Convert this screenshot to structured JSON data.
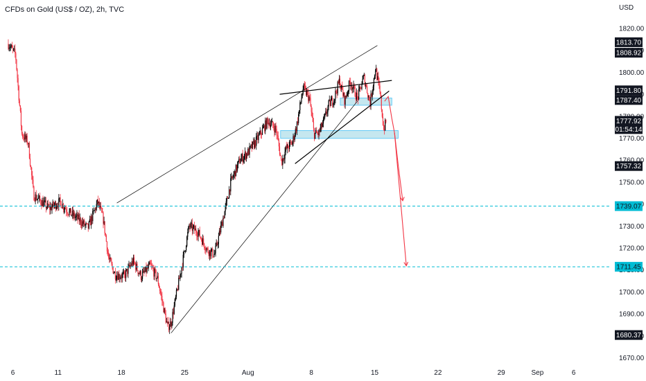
{
  "header": {
    "symbol_line": "CFDs on Gold (US$ / OZ), 2h, TVC"
  },
  "price_axis": {
    "currency": "USD"
  },
  "chart_data": {
    "type": "candlestick",
    "symbol": "CFDs on Gold (US$ / OZ)",
    "interval": "2h",
    "source": "TVC",
    "ylim": [
      1665,
      1830
    ],
    "y_ticks": [
      1670,
      1680,
      1690,
      1700,
      1710,
      1720,
      1730,
      1740,
      1750,
      1760,
      1770,
      1780,
      1790,
      1800,
      1810,
      1820
    ],
    "y_tick_labels": [
      "1670.00",
      "1680.00",
      "1690.00",
      "1700.00",
      "1710.00",
      "1720.00",
      "1730.00",
      "1740.00",
      "1750.00",
      "1760.00",
      "1770.00",
      "1780.00",
      "1790.00",
      "1800.00",
      "1810.00",
      "1820.00"
    ],
    "x_ticks": [
      {
        "label": "6",
        "day": 0
      },
      {
        "label": "11",
        "day": 5
      },
      {
        "label": "18",
        "day": 12
      },
      {
        "label": "25",
        "day": 19
      },
      {
        "label": "Aug",
        "day": 26
      },
      {
        "label": "8",
        "day": 33
      },
      {
        "label": "15",
        "day": 40
      },
      {
        "label": "22",
        "day": 47
      },
      {
        "label": "29",
        "day": 54
      },
      {
        "label": "Sep",
        "day": 58
      },
      {
        "label": "6",
        "day": 62
      }
    ],
    "price_path": [
      [
        -0.5,
        1813
      ],
      [
        0.3,
        1808
      ],
      [
        1,
        1772
      ],
      [
        1.7,
        1768
      ],
      [
        2.3,
        1744
      ],
      [
        3.2,
        1741
      ],
      [
        4,
        1738
      ],
      [
        5.2,
        1741
      ],
      [
        6.3,
        1736
      ],
      [
        7.3,
        1733
      ],
      [
        8.3,
        1729
      ],
      [
        9.4,
        1741
      ],
      [
        10,
        1733
      ],
      [
        10.6,
        1715
      ],
      [
        11.3,
        1708
      ],
      [
        12.3,
        1707
      ],
      [
        13.3,
        1714
      ],
      [
        14.2,
        1707
      ],
      [
        15.2,
        1712
      ],
      [
        16,
        1706
      ],
      [
        17.1,
        1684
      ],
      [
        17.5,
        1686
      ],
      [
        18.6,
        1710
      ],
      [
        19.5,
        1730
      ],
      [
        20.5,
        1727
      ],
      [
        21.5,
        1719
      ],
      [
        22.3,
        1717
      ],
      [
        23.5,
        1738
      ],
      [
        24.1,
        1750
      ],
      [
        25.1,
        1760
      ],
      [
        26.1,
        1764
      ],
      [
        27.1,
        1770
      ],
      [
        28.2,
        1778
      ],
      [
        29.1,
        1774
      ],
      [
        29.7,
        1759
      ],
      [
        30.2,
        1765
      ],
      [
        30.9,
        1768
      ],
      [
        31.4,
        1776
      ],
      [
        32.1,
        1793
      ],
      [
        32.8,
        1788
      ],
      [
        33.3,
        1772
      ],
      [
        33.8,
        1772
      ],
      [
        34.4,
        1778
      ],
      [
        34.9,
        1785
      ],
      [
        35.5,
        1788
      ],
      [
        36.1,
        1796
      ],
      [
        36.7,
        1787
      ],
      [
        37.3,
        1796
      ],
      [
        38.1,
        1788
      ],
      [
        38.8,
        1798
      ],
      [
        39.5,
        1786
      ],
      [
        40.1,
        1802
      ],
      [
        40.6,
        1790
      ],
      [
        41,
        1774
      ],
      [
        41.3,
        1778
      ]
    ],
    "candle_high": 1809.0,
    "candle_low": 1681.3,
    "rising_channel": {
      "upper": [
        [
          11.5,
          1740.5
        ],
        [
          40.3,
          1812.2
        ]
      ],
      "lower": [
        [
          17.5,
          1681.3
        ],
        [
          38.1,
          1786.9
        ]
      ]
    },
    "rising_wedge": {
      "upper": [
        [
          29.5,
          1790
        ],
        [
          41.9,
          1796.3
        ]
      ],
      "lower": [
        [
          31.2,
          1758.4
        ],
        [
          41.6,
          1791.5
        ]
      ]
    },
    "support_zones": [
      {
        "from_day": 36.2,
        "to_day": 41.9,
        "price_low": 1785,
        "price_high": 1788.3
      },
      {
        "from_day": 29.6,
        "to_day": 42.6,
        "price_low": 1769.9,
        "price_high": 1773.5
      }
    ],
    "projection": [
      [
        41.1,
        1786.8
      ],
      [
        41.5,
        1789
      ],
      [
        41.9,
        1779
      ],
      [
        42.2,
        1772.4
      ],
      [
        42.6,
        1758
      ],
      [
        43.1,
        1741.5
      ]
    ],
    "projection_2": [
      [
        42.2,
        1772.4
      ],
      [
        43.5,
        1711.9
      ]
    ],
    "horizontal_levels": [
      {
        "price": 1739.07,
        "label": "1739.07",
        "color": "#00bcd4"
      },
      {
        "price": 1711.45,
        "label": "1711.45",
        "color": "#00bcd4"
      }
    ],
    "price_labels": [
      {
        "price": 1813.7,
        "label": "1813.70"
      },
      {
        "price": 1808.92,
        "label": "1808.92"
      },
      {
        "price": 1791.8,
        "label": "1791.80"
      },
      {
        "price": 1787.4,
        "label": "1787.40"
      },
      {
        "price": 1777.92,
        "label": "1777.92",
        "sublabel": "01:54:14"
      },
      {
        "price": 1757.32,
        "label": "1757.32"
      },
      {
        "price": 1680.37,
        "label": "1680.37"
      }
    ],
    "colors": {
      "up": "#000000",
      "down": "#f23645",
      "trend": "#000000",
      "zone_fill": "#b2dfe9",
      "zone_stroke": "#4fc3f7",
      "level": "#00bcd4",
      "projection": "#f23645"
    }
  }
}
